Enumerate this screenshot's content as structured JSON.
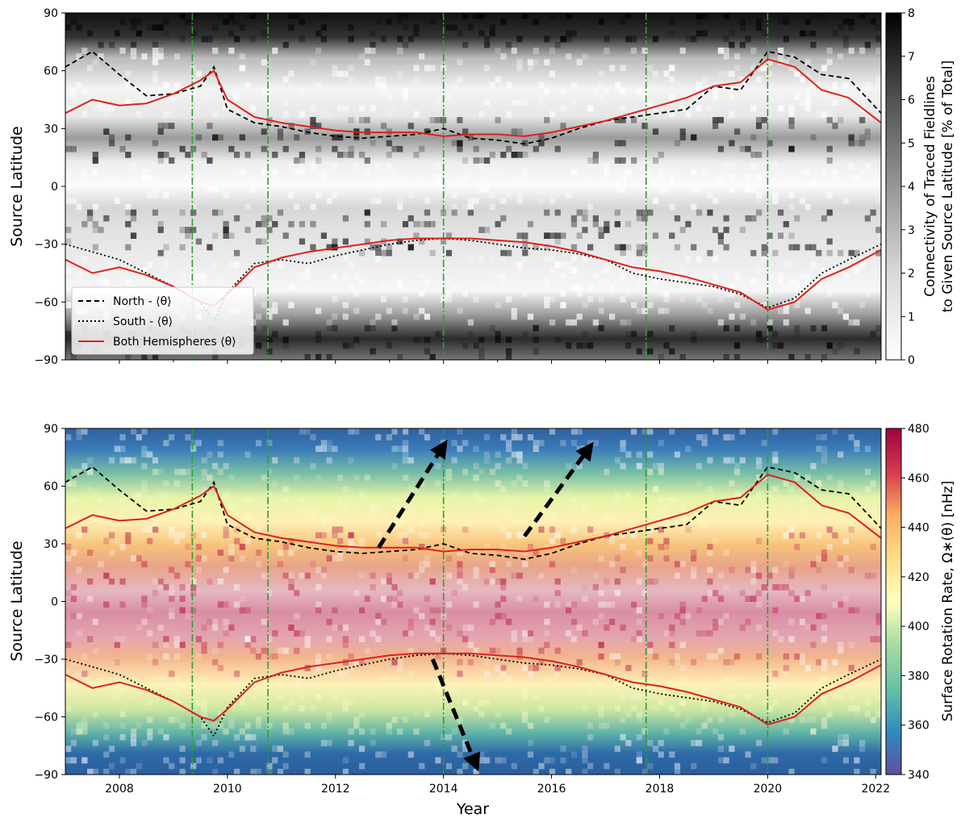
{
  "figure": {
    "xlabel": "Year",
    "x_ticks": [
      "2008",
      "2010",
      "2012",
      "2014",
      "2016",
      "2018",
      "2020",
      "2022"
    ]
  },
  "chart_data": [
    {
      "type": "heatmap",
      "ylabel": "Source Latitude",
      "y_ticks": [
        "90",
        "60",
        "30",
        "0",
        "−30",
        "−60",
        "−90"
      ],
      "xlim": [
        2007.0,
        2022.1
      ],
      "ylim": [
        -90,
        90
      ],
      "colormap": "Greys",
      "colorbar": {
        "label_line1": "Connectivity of Traced Fieldlines",
        "label_line2": "to Given Source Latitude [% of Total]",
        "ticks": [
          "8",
          "7",
          "6",
          "5",
          "4",
          "3",
          "2",
          "1",
          "0"
        ],
        "range": [
          0,
          8
        ]
      },
      "vertical_markers": [
        2009.35,
        2010.75,
        2014.0,
        2017.75,
        2020.0
      ],
      "marker_color": "#2ca02c",
      "legend": {
        "position": "lower-left",
        "entries": [
          {
            "label": "North - ⟨θ⟩",
            "style": "dashed",
            "color": "#000000"
          },
          {
            "label": "South - ⟨θ⟩",
            "style": "dotted",
            "color": "#000000"
          },
          {
            "label": "Both Hemispheres ⟨θ⟩",
            "style": "solid",
            "color": "#e0201b"
          }
        ]
      }
    },
    {
      "type": "heatmap",
      "ylabel": "Source Latitude",
      "y_ticks": [
        "90",
        "60",
        "30",
        "0",
        "−30",
        "−60",
        "−90"
      ],
      "xlim": [
        2007.0,
        2022.1
      ],
      "ylim": [
        -90,
        90
      ],
      "colormap": "Spectral_r",
      "colorbar": {
        "label": "Surface Rotation Rate, Ω∗(θ) [nHz]",
        "ticks": [
          "480",
          "460",
          "440",
          "420",
          "400",
          "380",
          "360",
          "340"
        ],
        "range": [
          340,
          480
        ]
      },
      "vertical_markers": [
        2009.35,
        2010.75,
        2014.0,
        2017.75,
        2020.0
      ],
      "arrows": [
        {
          "from": [
            2012.8,
            28
          ],
          "to": [
            2014.0,
            81
          ]
        },
        {
          "from": [
            2015.5,
            34
          ],
          "to": [
            2016.7,
            80
          ]
        },
        {
          "from": [
            2013.8,
            -30
          ],
          "to": [
            2014.6,
            -85
          ]
        }
      ]
    }
  ],
  "series": {
    "years": [
      2007.0,
      2007.5,
      2008.0,
      2008.5,
      2009.0,
      2009.5,
      2009.75,
      2010.0,
      2010.5,
      2011.0,
      2011.5,
      2012.0,
      2012.5,
      2013.0,
      2013.5,
      2014.0,
      2014.5,
      2015.0,
      2015.5,
      2016.0,
      2016.5,
      2017.0,
      2017.5,
      2018.0,
      2018.5,
      2019.0,
      2019.5,
      2020.0,
      2020.5,
      2021.0,
      2021.5,
      2022.1
    ],
    "north": [
      62,
      70,
      58,
      47,
      48,
      52,
      62,
      40,
      33,
      31,
      28,
      26,
      25,
      26,
      27,
      30,
      25,
      24,
      22,
      25,
      30,
      34,
      36,
      38,
      40,
      52,
      50,
      70,
      67,
      58,
      56,
      38
    ],
    "both_north": [
      38,
      45,
      42,
      43,
      48,
      55,
      60,
      45,
      36,
      33,
      31,
      29,
      28,
      28,
      28,
      26,
      27,
      27,
      26,
      28,
      31,
      34,
      38,
      42,
      46,
      52,
      54,
      66,
      62,
      50,
      46,
      33
    ],
    "south": [
      -30,
      -34,
      -38,
      -45,
      -52,
      -60,
      -70,
      -55,
      -40,
      -38,
      -40,
      -36,
      -33,
      -30,
      -28,
      -27,
      -28,
      -30,
      -32,
      -33,
      -35,
      -38,
      -45,
      -48,
      -50,
      -52,
      -56,
      -63,
      -58,
      -45,
      -38,
      -30
    ],
    "both_south": [
      -38,
      -45,
      -42,
      -46,
      -52,
      -60,
      -62,
      -56,
      -42,
      -37,
      -34,
      -32,
      -30,
      -28,
      -27,
      -27,
      -27,
      -28,
      -29,
      -31,
      -34,
      -38,
      -42,
      -44,
      -47,
      -51,
      -55,
      -64,
      -60,
      -48,
      -42,
      -33
    ]
  }
}
